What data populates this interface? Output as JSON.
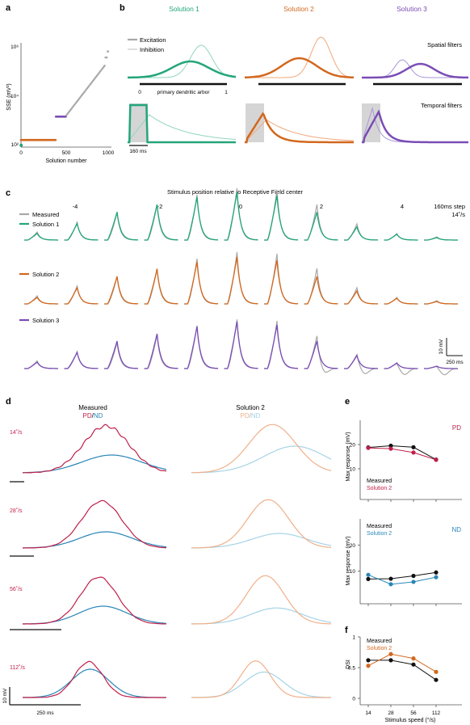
{
  "colors": {
    "measured": "#a8a8a8",
    "solution1": "#23a57b",
    "solution1_light": "#8fd6bd",
    "solution2": "#d2681e",
    "solution2_light": "#f0a87c",
    "solution3": "#7a4db5",
    "solution3_light": "#a996d6",
    "pd": "#c0204a",
    "nd": "#2a86b8",
    "pd_light": "#f0b08a",
    "nd_light": "#a6d3e6",
    "black": "#111111",
    "gray_box": "#d5d5d5"
  },
  "panels": {
    "a": {
      "label": "a",
      "ylabel": "SSE (mV²)",
      "xlabel": "Solution number",
      "yticks": [
        "10⁶",
        "10⁴",
        "10²"
      ],
      "xticks": [
        "0",
        "500",
        "1000"
      ]
    },
    "b": {
      "label": "b",
      "titles": [
        "Solution 1",
        "Solution 2",
        "Solution 3"
      ],
      "legend": [
        "Excitation",
        "Inhibition"
      ],
      "spatial_label": "Spatial filters",
      "temporal_label": "Temporal filters",
      "arbor_label": "primary dendritic arbor",
      "arbor_ticks": [
        "0",
        "1"
      ],
      "time_scale": "160 ms"
    },
    "c": {
      "label": "c",
      "title": "Stimulus position relative to Receptive Field center",
      "positions": [
        "-4",
        "-2",
        "0",
        "2",
        "4"
      ],
      "step_note": [
        "160ms step",
        "14˚/s"
      ],
      "legend": [
        "Measured",
        "Solution 1",
        "Solution 2",
        "Solution 3"
      ],
      "scale_v": "10 mV",
      "scale_t": "250 ms"
    },
    "d": {
      "label": "d",
      "measured_title": "Measured",
      "pd_label": "PD",
      "slash": "/",
      "nd_label": "ND",
      "solution_title": "Solution 2",
      "speeds": [
        "14˚/s",
        "28˚/s",
        "56˚/s",
        "112˚/s"
      ],
      "scale_v": "10 mV",
      "scale_t": "250 ms"
    },
    "e": {
      "label": "e",
      "ylabel": "Max response (mV)",
      "pd_tag": "PD",
      "nd_tag": "ND",
      "legend_measured": "Measured",
      "legend_solution": "Solution 2",
      "yticks_pd": [
        "20",
        "10"
      ],
      "yticks_nd": [
        "20",
        "10"
      ]
    },
    "f": {
      "label": "f",
      "ylabel": "DSI",
      "xlabel": "Stimulus speed (°/s)",
      "legend_measured": "Measured",
      "legend_solution": "Solution 2",
      "xticks": [
        "14",
        "28",
        "56",
        "112"
      ],
      "yticks": [
        "1",
        "0.5",
        "0"
      ]
    }
  },
  "chart_data": [
    {
      "type": "scatter",
      "panel": "e-PD",
      "categories": [
        14,
        28,
        56,
        112
      ],
      "ylim": [
        0,
        30
      ],
      "series": [
        {
          "name": "Measured",
          "values": [
            18.8,
            19.5,
            18.9,
            13.8
          ]
        },
        {
          "name": "Solution 2",
          "values": [
            18.6,
            18.3,
            16.7,
            13.7
          ]
        }
      ]
    },
    {
      "type": "scatter",
      "panel": "e-ND",
      "categories": [
        14,
        28,
        56,
        112
      ],
      "ylim": [
        0,
        30
      ],
      "series": [
        {
          "name": "Measured",
          "values": [
            7.0,
            7.1,
            8.2,
            9.5
          ]
        },
        {
          "name": "Solution 2",
          "values": [
            8.6,
            5.0,
            5.9,
            7.7
          ]
        }
      ]
    },
    {
      "type": "scatter",
      "panel": "f",
      "categories": [
        14,
        28,
        56,
        112
      ],
      "ylim": [
        0,
        1
      ],
      "series": [
        {
          "name": "Measured",
          "values": [
            0.62,
            0.62,
            0.55,
            0.3
          ]
        },
        {
          "name": "Solution 2",
          "values": [
            0.53,
            0.72,
            0.65,
            0.43
          ]
        }
      ]
    },
    {
      "type": "scatter",
      "panel": "a",
      "ylabel": "SSE (mV²)",
      "xlabel": "Solution number",
      "log_y": true,
      "xlim": [
        0,
        1000
      ],
      "segments": [
        {
          "x_from": 0,
          "x_to": 400,
          "y": 180
        },
        {
          "x_from": 400,
          "x_to": 1000,
          "y_from": 1500,
          "y_to": 500000
        }
      ]
    }
  ]
}
